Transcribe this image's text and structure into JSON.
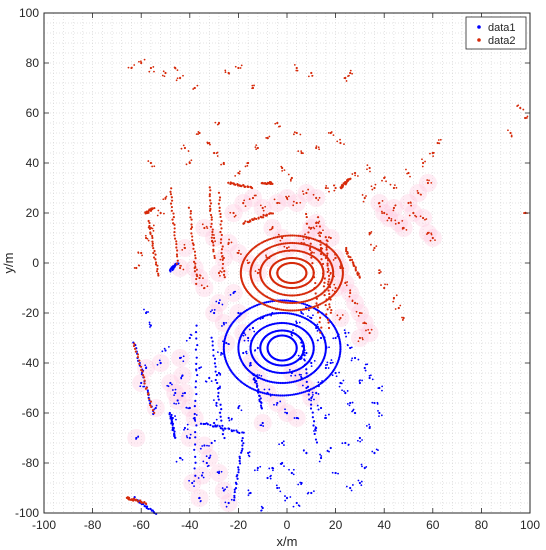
{
  "chart_data": {
    "type": "scatter",
    "title": "",
    "xlabel": "x/m",
    "ylabel": "y/m",
    "xlim": [
      -100,
      100
    ],
    "ylim": [
      -100,
      100
    ],
    "xticks": [
      -100,
      -80,
      -60,
      -40,
      -20,
      0,
      20,
      40,
      60,
      80,
      100
    ],
    "yticks": [
      -100,
      -80,
      -60,
      -40,
      -20,
      0,
      20,
      40,
      60,
      80,
      100
    ],
    "grid": true,
    "grid_style": "dotted-minor",
    "legend_position": "top-right",
    "colors": {
      "data1": "#0000ff",
      "data2": "#d62a0a",
      "halo": "#ffc8e0"
    },
    "series": [
      {
        "name": "data1",
        "color": "#0000ff",
        "marker": ".",
        "rings": {
          "center": [
            -2,
            -34
          ],
          "radii": [
            [
              6,
              5
            ],
            [
              9,
              7
            ],
            [
              13,
              10
            ],
            [
              18,
              14
            ],
            [
              24,
              19
            ]
          ]
        },
        "segments": [
          [
            [
              -63,
              -94
            ],
            [
              -54,
              -100
            ]
          ],
          [
            [
              -63,
              -32
            ],
            [
              -55,
              -60
            ]
          ],
          [
            [
              -37,
              -25
            ],
            [
              -38,
              -85
            ]
          ],
          [
            [
              -31,
              -30
            ],
            [
              -26,
              -70
            ]
          ],
          [
            [
              -35,
              -64
            ],
            [
              -18,
              -68
            ]
          ],
          [
            [
              -48,
              -60
            ],
            [
              -46,
              -70
            ]
          ],
          [
            [
              -14,
              -44
            ],
            [
              -10,
              -58
            ]
          ],
          [
            [
              6,
              -30
            ],
            [
              12,
              -72
            ]
          ],
          [
            [
              -45,
              0
            ],
            [
              -48,
              -3
            ]
          ],
          [
            [
              -18,
              -70
            ],
            [
              -22,
              -95
            ]
          ]
        ],
        "points": [
          [
            -44,
            -38
          ],
          [
            -43,
            -45
          ],
          [
            -42,
            -52
          ],
          [
            -45,
            -55
          ],
          [
            -40,
            -58
          ],
          [
            -38,
            -62
          ],
          [
            -34,
            -73
          ],
          [
            -32,
            -78
          ],
          [
            -28,
            -84
          ],
          [
            -26,
            -91
          ],
          [
            -24,
            -96
          ],
          [
            -35,
            -85
          ],
          [
            -39,
            -88
          ],
          [
            -36,
            -94
          ],
          [
            -40,
            -70
          ],
          [
            -52,
            -40
          ],
          [
            -48,
            -48
          ],
          [
            -46,
            -52
          ],
          [
            -54,
            -58
          ],
          [
            -60,
            -48
          ],
          [
            -58,
            -42
          ],
          [
            -62,
            -70
          ],
          [
            -30,
            -20
          ],
          [
            -28,
            -16
          ],
          [
            -26,
            -24
          ],
          [
            -22,
            -12
          ],
          [
            -20,
            -20
          ],
          [
            -18,
            -28
          ],
          [
            -25,
            -32
          ],
          [
            -15,
            -40
          ],
          [
            -12,
            -46
          ],
          [
            -8,
            -52
          ],
          [
            -4,
            -56
          ],
          [
            0,
            -60
          ],
          [
            4,
            -62
          ],
          [
            -10,
            -64
          ],
          [
            2,
            -44
          ],
          [
            6,
            -46
          ],
          [
            8,
            -50
          ],
          [
            10,
            -54
          ],
          [
            14,
            -58
          ],
          [
            16,
            -62
          ],
          [
            12,
            -66
          ],
          [
            18,
            -40
          ],
          [
            20,
            -44
          ],
          [
            22,
            -48
          ],
          [
            24,
            -52
          ],
          [
            26,
            -56
          ],
          [
            28,
            -60
          ],
          [
            30,
            -48
          ],
          [
            20,
            -30
          ],
          [
            24,
            -28
          ],
          [
            26,
            -34
          ],
          [
            28,
            -38
          ],
          [
            32,
            -42
          ],
          [
            34,
            -46
          ],
          [
            36,
            -56
          ],
          [
            36,
            -76
          ],
          [
            32,
            -82
          ],
          [
            30,
            -88
          ],
          [
            26,
            -90
          ],
          [
            20,
            -84
          ],
          [
            14,
            -78
          ],
          [
            10,
            -92
          ],
          [
            4,
            -96
          ],
          [
            0,
            -94
          ],
          [
            -4,
            -90
          ],
          [
            -8,
            -86
          ],
          [
            -12,
            -82
          ],
          [
            -16,
            -76
          ],
          [
            -2,
            -72
          ],
          [
            38,
            -50
          ],
          [
            38,
            -60
          ],
          [
            34,
            -66
          ],
          [
            30,
            -70
          ],
          [
            24,
            -72
          ],
          [
            18,
            -74
          ],
          [
            8,
            -76
          ],
          [
            -20,
            -58
          ],
          [
            -24,
            -62
          ],
          [
            -28,
            -50
          ],
          [
            -32,
            -46
          ],
          [
            -36,
            -42
          ],
          [
            -40,
            -30
          ],
          [
            2,
            -28
          ],
          [
            4,
            -24
          ],
          [
            6,
            -20
          ],
          [
            8,
            -18
          ],
          [
            10,
            -22
          ],
          [
            12,
            -26
          ],
          [
            14,
            -30
          ],
          [
            16,
            -34
          ],
          [
            16,
            -42
          ],
          [
            14,
            -48
          ],
          [
            12,
            -52
          ],
          [
            10,
            -40
          ],
          [
            8,
            -36
          ],
          [
            6,
            -38
          ],
          [
            -6,
            -20
          ],
          [
            -10,
            -22
          ],
          [
            -14,
            -26
          ],
          [
            -16,
            -30
          ],
          [
            -12,
            -34
          ],
          [
            -18,
            -36
          ],
          [
            -33,
            -80
          ],
          [
            -31,
            -72
          ],
          [
            -30,
            -64
          ],
          [
            -29,
            -56
          ],
          [
            -28,
            -44
          ],
          [
            -27,
            -36
          ],
          [
            -58,
            -20
          ],
          [
            -56,
            -25
          ],
          [
            -50,
            -35
          ],
          [
            -47,
            -62
          ],
          [
            -42,
            -66
          ],
          [
            -44,
            -78
          ],
          [
            -15,
            -92
          ],
          [
            -10,
            -98
          ],
          [
            -6,
            -82
          ],
          [
            -2,
            -80
          ],
          [
            2,
            -84
          ],
          [
            6,
            -88
          ]
        ]
      },
      {
        "name": "data2",
        "color": "#d62a0a",
        "marker": ".",
        "rings": {
          "center": [
            2,
            -4
          ],
          "radii": [
            [
              6,
              4
            ],
            [
              9,
              6
            ],
            [
              13,
              9
            ],
            [
              17,
              12
            ],
            [
              21,
              15
            ]
          ]
        },
        "segments": [
          [
            [
              -48,
              30
            ],
            [
              -45,
              0
            ]
          ],
          [
            [
              -57,
              17
            ],
            [
              -53,
              -5
            ]
          ],
          [
            [
              -58,
              20
            ],
            [
              -55,
              22
            ]
          ],
          [
            [
              -40,
              22
            ],
            [
              -37,
              -8
            ]
          ],
          [
            [
              -32,
              30
            ],
            [
              -30,
              2
            ]
          ],
          [
            [
              -28,
              28
            ],
            [
              -26,
              -6
            ]
          ],
          [
            [
              -10,
              32
            ],
            [
              -6,
              32
            ]
          ],
          [
            [
              -24,
              32
            ],
            [
              -14,
              30
            ]
          ],
          [
            [
              8,
              20
            ],
            [
              14,
              -28
            ]
          ],
          [
            [
              13,
              18
            ],
            [
              17,
              -26
            ]
          ],
          [
            [
              16,
              10
            ],
            [
              18,
              -20
            ]
          ],
          [
            [
              22,
              30
            ],
            [
              26,
              34
            ]
          ],
          [
            [
              24,
              6
            ],
            [
              30,
              -6
            ]
          ],
          [
            [
              -18,
              16
            ],
            [
              -6,
              20
            ]
          ],
          [
            [
              -63,
              -32
            ],
            [
              -55,
              -60
            ]
          ],
          [
            [
              -66,
              -94
            ],
            [
              -58,
              -96
            ]
          ]
        ],
        "points": [
          [
            -64,
            78
          ],
          [
            -60,
            80
          ],
          [
            -56,
            78
          ],
          [
            -50,
            76
          ],
          [
            -46,
            78
          ],
          [
            -44,
            74
          ],
          [
            -38,
            70
          ],
          [
            -24,
            76
          ],
          [
            -20,
            78
          ],
          [
            -14,
            70
          ],
          [
            4,
            78
          ],
          [
            10,
            76
          ],
          [
            24,
            74
          ],
          [
            26,
            76
          ],
          [
            -36,
            52
          ],
          [
            -32,
            48
          ],
          [
            -28,
            56
          ],
          [
            -30,
            44
          ],
          [
            -26,
            40
          ],
          [
            -12,
            46
          ],
          [
            -8,
            50
          ],
          [
            -4,
            56
          ],
          [
            4,
            52
          ],
          [
            6,
            44
          ],
          [
            12,
            46
          ],
          [
            18,
            52
          ],
          [
            22,
            48
          ],
          [
            28,
            36
          ],
          [
            34,
            38
          ],
          [
            40,
            34
          ],
          [
            44,
            30
          ],
          [
            -56,
            40
          ],
          [
            -42,
            46
          ],
          [
            -40,
            40
          ],
          [
            -20,
            36
          ],
          [
            -16,
            40
          ],
          [
            -2,
            38
          ],
          [
            2,
            34
          ],
          [
            32,
            26
          ],
          [
            36,
            30
          ],
          [
            38,
            24
          ],
          [
            40,
            20
          ],
          [
            42,
            18
          ],
          [
            44,
            22
          ],
          [
            46,
            16
          ],
          [
            48,
            14
          ],
          [
            50,
            24
          ],
          [
            52,
            20
          ],
          [
            54,
            28
          ],
          [
            56,
            18
          ],
          [
            58,
            12
          ],
          [
            60,
            10
          ],
          [
            58,
            32
          ],
          [
            -34,
            14
          ],
          [
            -30,
            10
          ],
          [
            -24,
            8
          ],
          [
            -20,
            4
          ],
          [
            -16,
            0
          ],
          [
            -12,
            -4
          ],
          [
            -8,
            2
          ],
          [
            -22,
            20
          ],
          [
            -18,
            24
          ],
          [
            -14,
            26
          ],
          [
            -10,
            22
          ],
          [
            -6,
            14
          ],
          [
            -2,
            10
          ],
          [
            0,
            6
          ],
          [
            6,
            8
          ],
          [
            10,
            4
          ],
          [
            14,
            6
          ],
          [
            18,
            10
          ],
          [
            20,
            2
          ],
          [
            22,
            -2
          ],
          [
            24,
            -8
          ],
          [
            26,
            -12
          ],
          [
            28,
            -16
          ],
          [
            30,
            -20
          ],
          [
            32,
            -24
          ],
          [
            34,
            -28
          ],
          [
            30,
            -30
          ],
          [
            22,
            -22
          ],
          [
            20,
            -10
          ],
          [
            18,
            -4
          ],
          [
            16,
            2
          ],
          [
            14,
            12
          ],
          [
            12,
            16
          ],
          [
            10,
            14
          ],
          [
            8,
            10
          ],
          [
            -38,
            -2
          ],
          [
            -36,
            -6
          ],
          [
            -34,
            -10
          ],
          [
            -44,
            -2
          ],
          [
            -42,
            6
          ],
          [
            -28,
            -4
          ],
          [
            -26,
            2
          ],
          [
            -4,
            24
          ],
          [
            0,
            26
          ],
          [
            4,
            24
          ],
          [
            8,
            28
          ],
          [
            12,
            26
          ],
          [
            16,
            30
          ],
          [
            20,
            30
          ],
          [
            34,
            12
          ],
          [
            36,
            6
          ],
          [
            38,
            -4
          ],
          [
            40,
            -10
          ],
          [
            44,
            -14
          ],
          [
            46,
            -18
          ],
          [
            48,
            -22
          ],
          [
            50,
            36
          ],
          [
            56,
            40
          ],
          [
            60,
            44
          ],
          [
            62,
            48
          ],
          [
            98,
            20
          ],
          [
            98,
            58
          ],
          [
            96,
            62
          ],
          [
            92,
            52
          ],
          [
            -62,
            -2
          ],
          [
            -60,
            4
          ],
          [
            -58,
            10
          ],
          [
            -56,
            14
          ],
          [
            -52,
            20
          ],
          [
            -50,
            26
          ]
        ]
      }
    ]
  }
}
